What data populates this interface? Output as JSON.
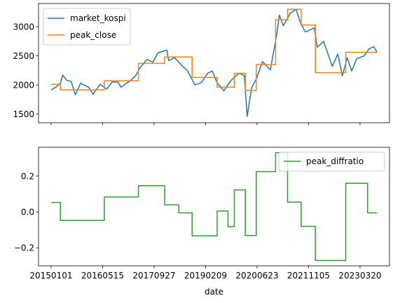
{
  "chart_data": [
    {
      "type": "line",
      "x_type": "date",
      "xlim": [
        "2014-09-01",
        "2023-12-31"
      ],
      "ylim": [
        1350,
        3400
      ],
      "yticks": [
        1500,
        2000,
        2500,
        3000
      ],
      "legend_position": "upper left",
      "grid": false,
      "series": [
        {
          "name": "market_kospi",
          "color": "#1f77b4",
          "points": [
            [
              "2015-01-02",
              1915
            ],
            [
              "2015-02-15",
              1960
            ],
            [
              "2015-04-01",
              2030
            ],
            [
              "2015-04-24",
              2170
            ],
            [
              "2015-06-01",
              2080
            ],
            [
              "2015-07-15",
              2060
            ],
            [
              "2015-08-24",
              1830
            ],
            [
              "2015-10-15",
              2030
            ],
            [
              "2015-12-31",
              1960
            ],
            [
              "2016-02-12",
              1840
            ],
            [
              "2016-04-20",
              2010
            ],
            [
              "2016-06-24",
              1930
            ],
            [
              "2016-08-15",
              2050
            ],
            [
              "2016-10-10",
              2050
            ],
            [
              "2016-11-10",
              1960
            ],
            [
              "2016-12-30",
              2026
            ],
            [
              "2017-02-15",
              2080
            ],
            [
              "2017-04-01",
              2160
            ],
            [
              "2017-05-15",
              2300
            ],
            [
              "2017-07-20",
              2440
            ],
            [
              "2017-09-15",
              2390
            ],
            [
              "2017-11-03",
              2550
            ],
            [
              "2018-01-29",
              2600
            ],
            [
              "2018-02-15",
              2420
            ],
            [
              "2018-04-15",
              2470
            ],
            [
              "2018-06-30",
              2320
            ],
            [
              "2018-08-15",
              2250
            ],
            [
              "2018-10-29",
              2000
            ],
            [
              "2018-12-31",
              2040
            ],
            [
              "2019-03-01",
              2200
            ],
            [
              "2019-04-15",
              2240
            ],
            [
              "2019-05-31",
              2040
            ],
            [
              "2019-08-06",
              1900
            ],
            [
              "2019-10-15",
              2080
            ],
            [
              "2019-12-31",
              2200
            ],
            [
              "2020-02-20",
              2160
            ],
            [
              "2020-03-19",
              1460
            ],
            [
              "2020-04-30",
              1950
            ],
            [
              "2020-06-15",
              2100
            ],
            [
              "2020-08-15",
              2400
            ],
            [
              "2020-10-30",
              2260
            ],
            [
              "2020-12-31",
              2870
            ],
            [
              "2021-01-25",
              3200
            ],
            [
              "2021-03-05",
              3020
            ],
            [
              "2021-05-10",
              3230
            ],
            [
              "2021-07-06",
              3300
            ],
            [
              "2021-08-20",
              3060
            ],
            [
              "2021-10-06",
              2910
            ],
            [
              "2021-12-31",
              2980
            ],
            [
              "2022-01-28",
              2650
            ],
            [
              "2022-03-31",
              2750
            ],
            [
              "2022-06-23",
              2320
            ],
            [
              "2022-08-15",
              2530
            ],
            [
              "2022-09-30",
              2160
            ],
            [
              "2022-11-15",
              2470
            ],
            [
              "2022-12-29",
              2240
            ],
            [
              "2023-02-15",
              2450
            ],
            [
              "2023-04-30",
              2500
            ],
            [
              "2023-06-15",
              2620
            ],
            [
              "2023-08-01",
              2660
            ],
            [
              "2023-08-31",
              2560
            ]
          ]
        },
        {
          "name": "peak_close",
          "color": "#ff7f0e",
          "step": "post",
          "points": [
            [
              "2015-01-02",
              2010
            ],
            [
              "2015-04-01",
              1915
            ],
            [
              "2016-06-01",
              2070
            ],
            [
              "2017-04-28",
              2370
            ],
            [
              "2018-01-08",
              2480
            ],
            [
              "2018-10-01",
              2130
            ],
            [
              "2019-06-01",
              1960
            ],
            [
              "2019-11-15",
              2200
            ],
            [
              "2020-03-01",
              1905
            ],
            [
              "2020-06-15",
              2350
            ],
            [
              "2020-12-20",
              3120
            ],
            [
              "2021-04-15",
              3300
            ],
            [
              "2021-08-25",
              3030
            ],
            [
              "2022-01-10",
              2210
            ],
            [
              "2022-11-01",
              2560
            ],
            [
              "2023-08-31",
              2560
            ]
          ]
        }
      ]
    },
    {
      "type": "line",
      "x_type": "date",
      "xlabel": "date",
      "xlim": [
        "2014-09-01",
        "2023-12-31"
      ],
      "ylim": [
        -0.3,
        0.36
      ],
      "yticks": [
        -0.2,
        0.0,
        0.2
      ],
      "ytick_labels": [
        "−0.2",
        "0.0",
        "0.2"
      ],
      "xticks": [
        "2015-01-01",
        "2016-05-15",
        "2017-09-27",
        "2019-02-09",
        "2020-06-23",
        "2021-11-05",
        "2023-03-20"
      ],
      "xtick_labels": [
        "20150101",
        "20160515",
        "20170927",
        "20190209",
        "20200623",
        "20211105",
        "20230320"
      ],
      "legend_position": "upper right",
      "grid": false,
      "series": [
        {
          "name": "peak_diffratio",
          "color": "#2ca02c",
          "step": "post",
          "points": [
            [
              "2015-01-02",
              0.053
            ],
            [
              "2015-04-01",
              -0.047
            ],
            [
              "2016-06-01",
              0.083
            ],
            [
              "2017-04-28",
              0.146
            ],
            [
              "2018-01-08",
              0.04
            ],
            [
              "2018-05-25",
              -0.005
            ],
            [
              "2018-10-01",
              -0.133
            ],
            [
              "2019-06-01",
              0.005
            ],
            [
              "2019-09-15",
              -0.082
            ],
            [
              "2019-11-15",
              0.123
            ],
            [
              "2020-03-01",
              -0.131
            ],
            [
              "2020-06-15",
              0.225
            ],
            [
              "2020-12-20",
              0.33
            ],
            [
              "2021-04-15",
              0.055
            ],
            [
              "2021-08-25",
              -0.08
            ],
            [
              "2022-01-10",
              -0.27
            ],
            [
              "2022-11-01",
              0.16
            ],
            [
              "2023-06-01",
              -0.005
            ],
            [
              "2023-08-31",
              -0.005
            ]
          ]
        }
      ]
    }
  ]
}
